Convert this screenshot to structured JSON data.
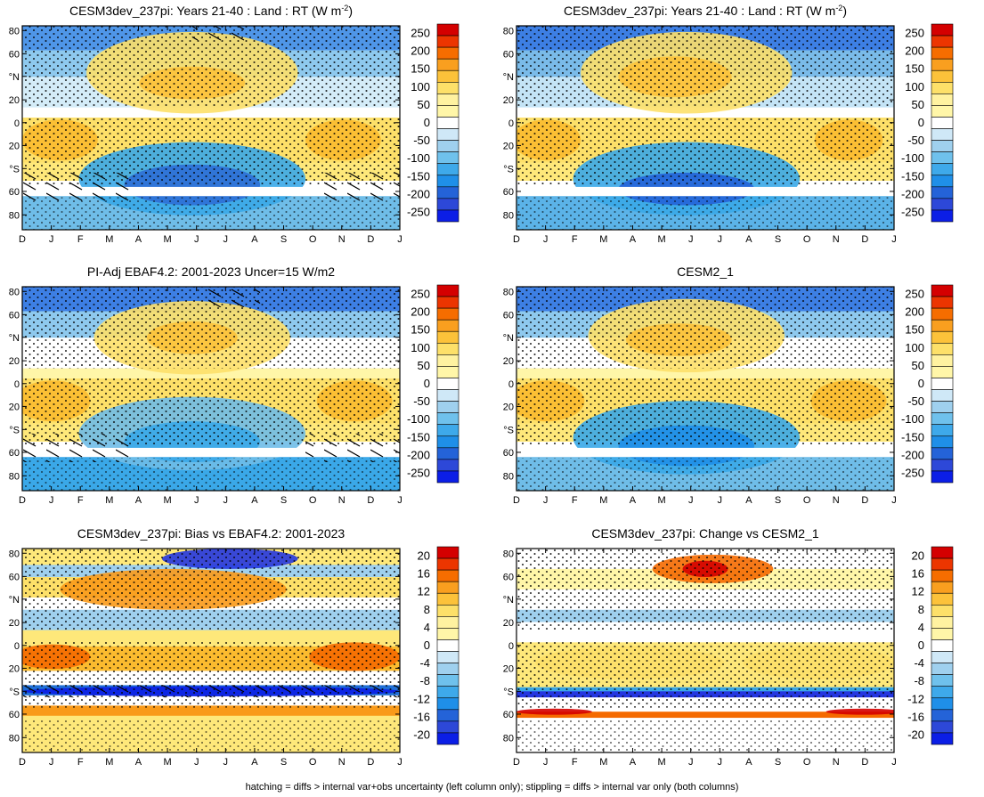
{
  "figure": {
    "footer": "hatching = diffs > internal var+obs uncertainty (left column only); stippling = diffs > internal var only (both columns)"
  },
  "colors": {
    "blue_dark": "#0b1ee6",
    "blue_light": "#9fd0ee",
    "white": "#ffffff",
    "yellow_light": "#fff6a8",
    "red_dark": "#d40000"
  },
  "chart_data": [
    {
      "type": "heatmap",
      "title": "CESM3dev_237pi: Years 21-40 : Land : RT (W m",
      "title_sup": "-2",
      "title_end": ")",
      "x": [
        "D",
        "J",
        "F",
        "M",
        "A",
        "M",
        "J",
        "J",
        "A",
        "S",
        "O",
        "N",
        "D",
        "J"
      ],
      "y_ticks": [
        "80",
        "60",
        "°N",
        "20",
        "0",
        "20",
        "°S",
        "60",
        "80"
      ],
      "colorbar": [
        "250",
        "200",
        "150",
        "100",
        "50",
        "0",
        "-50",
        "-100",
        "-150",
        "-200",
        "-250"
      ],
      "hatching": true,
      "stippling": true
    },
    {
      "type": "heatmap",
      "title": "CESM3dev_237pi: Years 21-40 : Land : RT (W m",
      "title_sup": "-2",
      "title_end": ")",
      "x": [
        "D",
        "J",
        "F",
        "M",
        "A",
        "M",
        "J",
        "J",
        "A",
        "S",
        "O",
        "N",
        "D",
        "J"
      ],
      "y_ticks": [
        "80",
        "60",
        "°N",
        "20",
        "0",
        "20",
        "°S",
        "60",
        "80"
      ],
      "colorbar": [
        "250",
        "200",
        "150",
        "100",
        "50",
        "0",
        "-50",
        "-100",
        "-150",
        "-200",
        "-250"
      ],
      "hatching": false,
      "stippling": true
    },
    {
      "type": "heatmap",
      "title": "PI-Adj EBAF4.2: 2001-2023 Uncer=15 W/m2",
      "x": [
        "D",
        "J",
        "F",
        "M",
        "A",
        "M",
        "J",
        "J",
        "A",
        "S",
        "O",
        "N",
        "D",
        "J"
      ],
      "y_ticks": [
        "80",
        "60",
        "°N",
        "20",
        "0",
        "20",
        "°S",
        "60",
        "80"
      ],
      "colorbar": [
        "250",
        "200",
        "150",
        "100",
        "50",
        "0",
        "-50",
        "-100",
        "-150",
        "-200",
        "-250"
      ],
      "hatching": true,
      "stippling": true
    },
    {
      "type": "heatmap",
      "title": "CESM2_1",
      "x": [
        "D",
        "J",
        "F",
        "M",
        "A",
        "M",
        "J",
        "J",
        "A",
        "S",
        "O",
        "N",
        "D",
        "J"
      ],
      "y_ticks": [
        "80",
        "60",
        "°N",
        "20",
        "0",
        "20",
        "°S",
        "60",
        "80"
      ],
      "colorbar": [
        "250",
        "200",
        "150",
        "100",
        "50",
        "0",
        "-50",
        "-100",
        "-150",
        "-200",
        "-250"
      ],
      "hatching": false,
      "stippling": true
    },
    {
      "type": "heatmap",
      "title": "CESM3dev_237pi: Bias vs EBAF4.2: 2001-2023",
      "x": [
        "D",
        "J",
        "F",
        "M",
        "A",
        "M",
        "J",
        "J",
        "A",
        "S",
        "O",
        "N",
        "D",
        "J"
      ],
      "y_ticks": [
        "80",
        "60",
        "°N",
        "20",
        "0",
        "20",
        "°S",
        "60",
        "80"
      ],
      "colorbar": [
        "20",
        "16",
        "12",
        "8",
        "4",
        "0",
        "-4",
        "-8",
        "-12",
        "-16",
        "-20"
      ],
      "hatching": true,
      "stippling": true
    },
    {
      "type": "heatmap",
      "title": "CESM3dev_237pi: Change vs CESM2_1",
      "x": [
        "D",
        "J",
        "F",
        "M",
        "A",
        "M",
        "J",
        "J",
        "A",
        "S",
        "O",
        "N",
        "D",
        "J"
      ],
      "y_ticks": [
        "80",
        "60",
        "°N",
        "20",
        "0",
        "20",
        "°S",
        "60",
        "80"
      ],
      "colorbar": [
        "20",
        "16",
        "12",
        "8",
        "4",
        "0",
        "-4",
        "-8",
        "-12",
        "-16",
        "-20"
      ],
      "hatching": false,
      "stippling": true
    }
  ]
}
